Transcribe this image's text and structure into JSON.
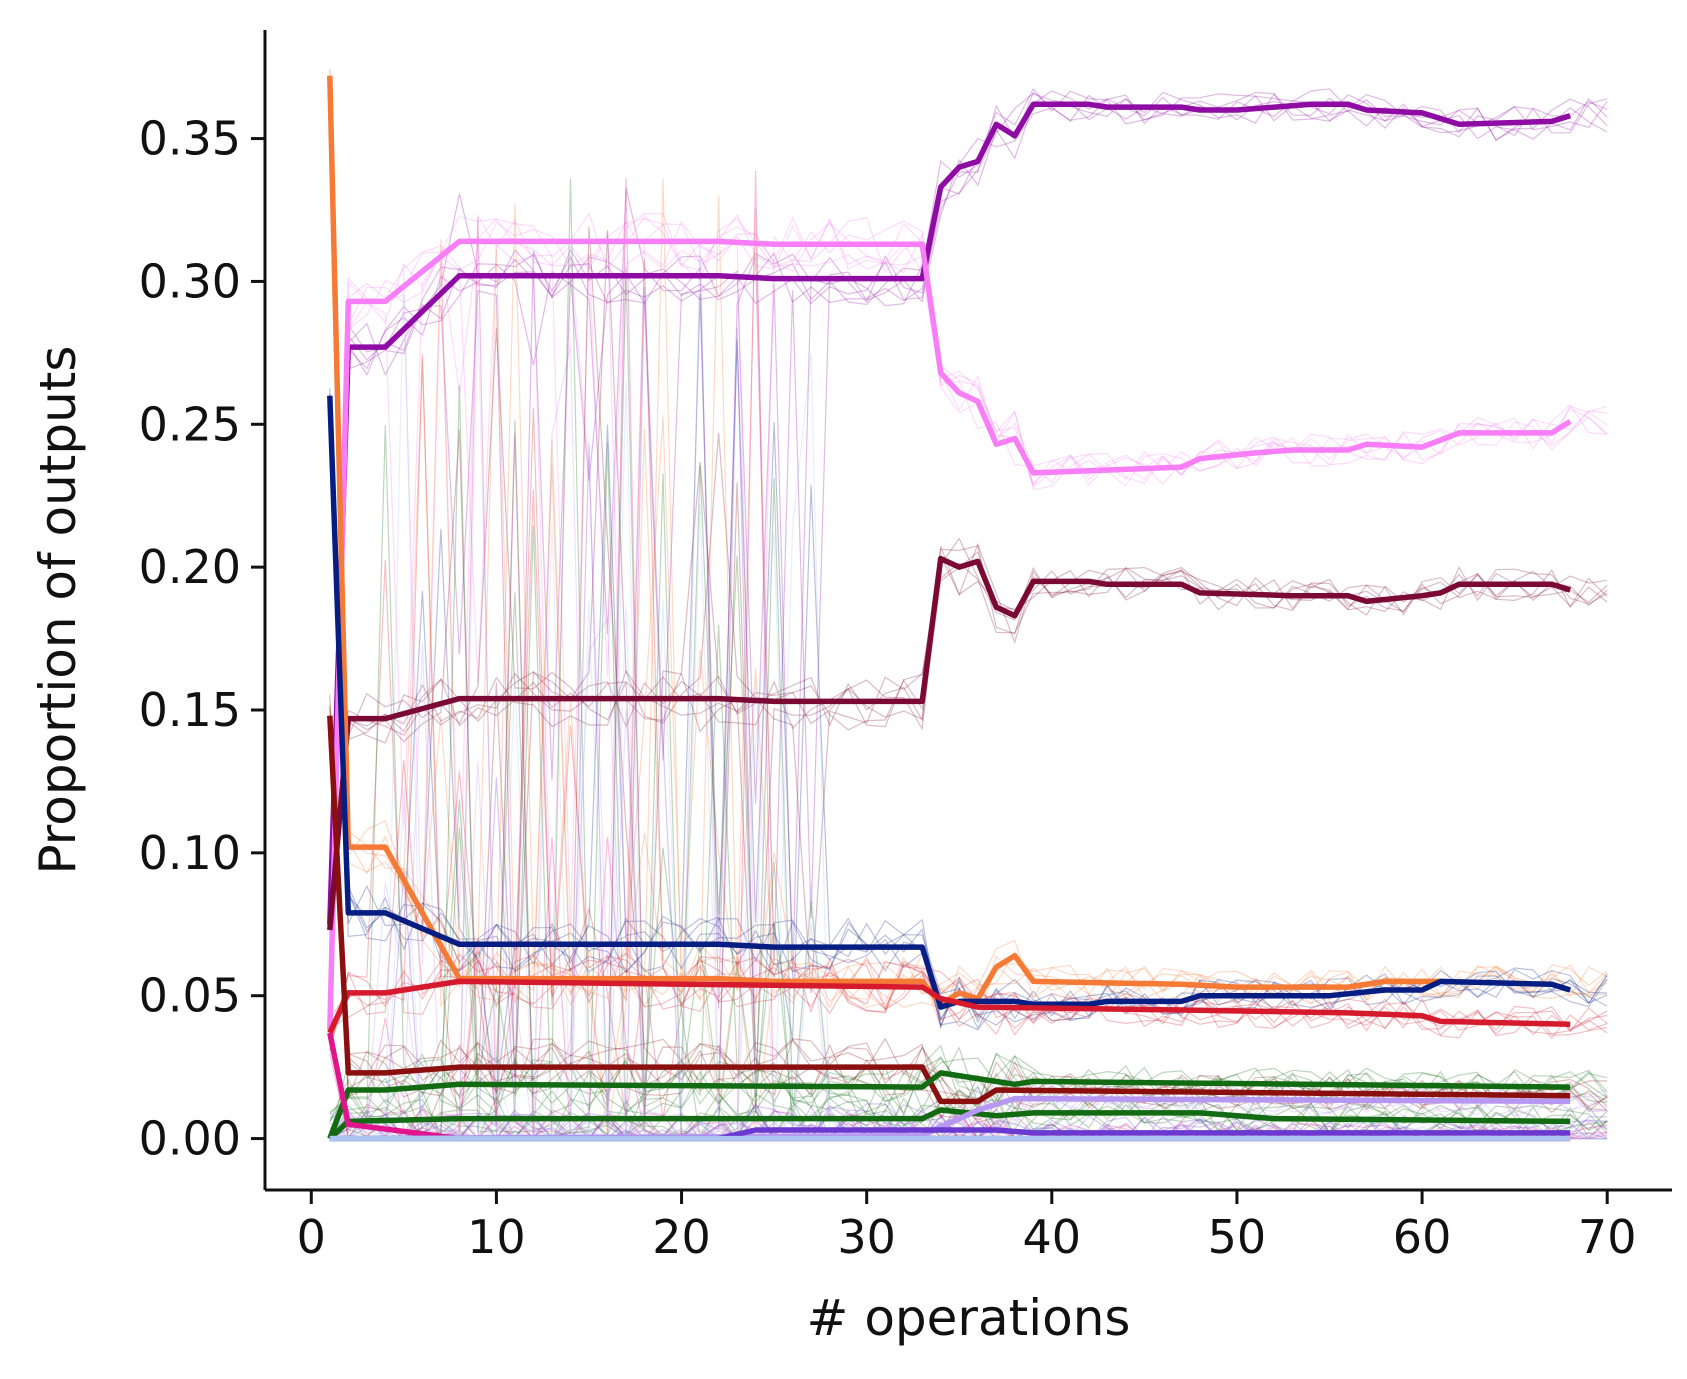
{
  "chart_data": {
    "type": "line",
    "title": "",
    "xlabel": "# operations",
    "ylabel": "Proportion of outputs",
    "xlim": [
      -2.5,
      73.5
    ],
    "ylim": [
      -0.018,
      0.388
    ],
    "xticks": [
      0,
      10,
      20,
      30,
      40,
      50,
      60,
      70
    ],
    "xtick_labels": [
      "0",
      "10",
      "20",
      "30",
      "40",
      "50",
      "60",
      "70"
    ],
    "yticks": [
      0.0,
      0.05,
      0.1,
      0.15,
      0.2,
      0.25,
      0.3,
      0.35
    ],
    "ytick_labels": [
      "0.00",
      "0.05",
      "0.10",
      "0.15",
      "0.20",
      "0.25",
      "0.30",
      "0.35"
    ],
    "grid": false,
    "legend": "none",
    "series": [
      {
        "color": "#8e0ca4",
        "points": [
          [
            1,
            0.075
          ],
          [
            2,
            0.277
          ],
          [
            4,
            0.277
          ],
          [
            8,
            0.302
          ],
          [
            22,
            0.302
          ],
          [
            25,
            0.301
          ],
          [
            33,
            0.301
          ],
          [
            34,
            0.333
          ],
          [
            35,
            0.34
          ],
          [
            36,
            0.342
          ],
          [
            37,
            0.355
          ],
          [
            38,
            0.351
          ],
          [
            39,
            0.362
          ],
          [
            42,
            0.362
          ],
          [
            43,
            0.361
          ],
          [
            47,
            0.361
          ],
          [
            48,
            0.36
          ],
          [
            50,
            0.36
          ],
          [
            54,
            0.362
          ],
          [
            56,
            0.362
          ],
          [
            57,
            0.36
          ],
          [
            60,
            0.359
          ],
          [
            62,
            0.355
          ],
          [
            67,
            0.356
          ],
          [
            68,
            0.358
          ]
        ]
      },
      {
        "color": "#f77ef6",
        "points": [
          [
            1,
            0.038
          ],
          [
            2,
            0.293
          ],
          [
            4,
            0.293
          ],
          [
            8,
            0.314
          ],
          [
            22,
            0.314
          ],
          [
            25,
            0.313
          ],
          [
            33,
            0.313
          ],
          [
            34,
            0.268
          ],
          [
            35,
            0.261
          ],
          [
            36,
            0.258
          ],
          [
            37,
            0.243
          ],
          [
            38,
            0.245
          ],
          [
            39,
            0.233
          ],
          [
            47,
            0.235
          ],
          [
            48,
            0.238
          ],
          [
            51,
            0.24
          ],
          [
            53,
            0.241
          ],
          [
            56,
            0.241
          ],
          [
            57,
            0.243
          ],
          [
            60,
            0.242
          ],
          [
            62,
            0.247
          ],
          [
            67,
            0.247
          ],
          [
            68,
            0.251
          ]
        ]
      },
      {
        "color": "#7a0a34",
        "points": [
          [
            1,
            0.073
          ],
          [
            2,
            0.147
          ],
          [
            4,
            0.147
          ],
          [
            8,
            0.154
          ],
          [
            22,
            0.154
          ],
          [
            25,
            0.153
          ],
          [
            33,
            0.153
          ],
          [
            34,
            0.203
          ],
          [
            35,
            0.2
          ],
          [
            36,
            0.202
          ],
          [
            37,
            0.186
          ],
          [
            38,
            0.183
          ],
          [
            39,
            0.195
          ],
          [
            42,
            0.195
          ],
          [
            43,
            0.194
          ],
          [
            47,
            0.194
          ],
          [
            48,
            0.191
          ],
          [
            53,
            0.19
          ],
          [
            56,
            0.19
          ],
          [
            57,
            0.188
          ],
          [
            60,
            0.19
          ],
          [
            61,
            0.191
          ],
          [
            62,
            0.194
          ],
          [
            67,
            0.194
          ],
          [
            68,
            0.192
          ]
        ]
      },
      {
        "color": "#f47a35",
        "points": [
          [
            1,
            0.372
          ],
          [
            2,
            0.102
          ],
          [
            4,
            0.102
          ],
          [
            8,
            0.056
          ],
          [
            22,
            0.056
          ],
          [
            25,
            0.055
          ],
          [
            33,
            0.055
          ],
          [
            34,
            0.047
          ],
          [
            35,
            0.051
          ],
          [
            36,
            0.049
          ],
          [
            37,
            0.06
          ],
          [
            38,
            0.064
          ],
          [
            39,
            0.055
          ],
          [
            47,
            0.054
          ],
          [
            50,
            0.053
          ],
          [
            56,
            0.053
          ],
          [
            58,
            0.055
          ],
          [
            61,
            0.055
          ]
        ]
      },
      {
        "color": "#061e82",
        "points": [
          [
            1,
            0.26
          ],
          [
            2,
            0.079
          ],
          [
            4,
            0.079
          ],
          [
            8,
            0.068
          ],
          [
            22,
            0.068
          ],
          [
            25,
            0.067
          ],
          [
            33,
            0.067
          ],
          [
            34,
            0.046
          ],
          [
            35,
            0.048
          ],
          [
            38,
            0.048
          ],
          [
            39,
            0.047
          ],
          [
            42,
            0.047
          ],
          [
            43,
            0.048
          ],
          [
            47,
            0.048
          ],
          [
            48,
            0.05
          ],
          [
            55,
            0.05
          ],
          [
            58,
            0.052
          ],
          [
            60,
            0.052
          ],
          [
            61,
            0.055
          ],
          [
            67,
            0.054
          ],
          [
            68,
            0.052
          ]
        ]
      },
      {
        "color": "#d41a2c",
        "points": [
          [
            1,
            0.037
          ],
          [
            2,
            0.051
          ],
          [
            4,
            0.051
          ],
          [
            8,
            0.055
          ],
          [
            33,
            0.053
          ],
          [
            34,
            0.049
          ],
          [
            36,
            0.046
          ],
          [
            47,
            0.045
          ],
          [
            56,
            0.044
          ],
          [
            60,
            0.043
          ],
          [
            61,
            0.041
          ],
          [
            68,
            0.04
          ]
        ]
      },
      {
        "color": "#8a0f0f",
        "points": [
          [
            1,
            0.148
          ],
          [
            2,
            0.023
          ],
          [
            4,
            0.023
          ],
          [
            8,
            0.025
          ],
          [
            33,
            0.025
          ],
          [
            34,
            0.013
          ],
          [
            36,
            0.013
          ],
          [
            37,
            0.017
          ],
          [
            68,
            0.015
          ]
        ]
      },
      {
        "color": "#126a12",
        "points": [
          [
            1,
            0.0
          ],
          [
            2,
            0.017
          ],
          [
            4,
            0.017
          ],
          [
            8,
            0.019
          ],
          [
            33,
            0.018
          ],
          [
            34,
            0.023
          ],
          [
            36,
            0.021
          ],
          [
            38,
            0.019
          ],
          [
            39,
            0.02
          ],
          [
            68,
            0.018
          ]
        ]
      },
      {
        "color": "#126a12",
        "points": [
          [
            1,
            0.0
          ],
          [
            2,
            0.006
          ],
          [
            8,
            0.007
          ],
          [
            33,
            0.007
          ],
          [
            34,
            0.01
          ],
          [
            37,
            0.008
          ],
          [
            39,
            0.009
          ],
          [
            48,
            0.009
          ],
          [
            52,
            0.007
          ],
          [
            68,
            0.006
          ]
        ]
      },
      {
        "color": "#e0148c",
        "points": [
          [
            1,
            0.037
          ],
          [
            2,
            0.005
          ],
          [
            8,
            0.0
          ],
          [
            68,
            0.0
          ]
        ]
      },
      {
        "color": "#b697f2",
        "points": [
          [
            1,
            0.0
          ],
          [
            33,
            0.001
          ],
          [
            34,
            0.004
          ],
          [
            36,
            0.01
          ],
          [
            38,
            0.014
          ],
          [
            68,
            0.013
          ]
        ]
      },
      {
        "color": "#6a3ad0",
        "points": [
          [
            1,
            0.0
          ],
          [
            22,
            0.0
          ],
          [
            24,
            0.003
          ],
          [
            33,
            0.003
          ],
          [
            37,
            0.003
          ],
          [
            39,
            0.002
          ],
          [
            68,
            0.002
          ]
        ]
      },
      {
        "color": "#adc3f0",
        "points": [
          [
            1,
            0.0
          ],
          [
            68,
            0.0
          ]
        ]
      }
    ]
  }
}
